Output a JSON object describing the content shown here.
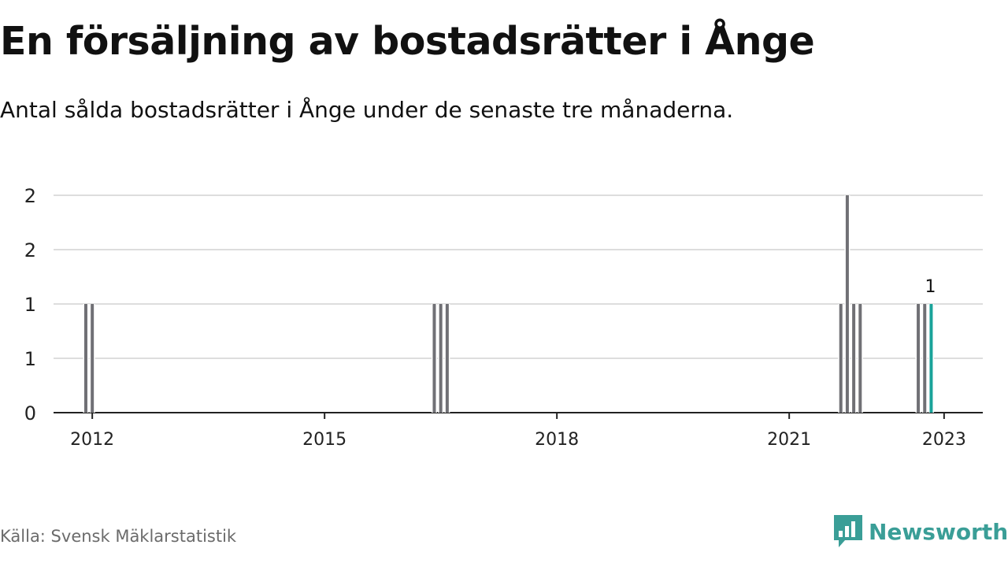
{
  "title": "En försäljning av bostadsrätter i Ånge",
  "subtitle": "Antal sålda bostadsrätter i Ånge under de senaste tre månaderna.",
  "source": "Källa: Svensk Mäklarstatistik",
  "brand": "Newsworthy",
  "colors": {
    "bar": "#707075",
    "highlight": "#1aa39a",
    "grid": "#dddddd",
    "axis": "#222222",
    "brand": "#3a9e97"
  },
  "chart_data": {
    "type": "bar",
    "title": "En försäljning av bostadsrätter i Ånge",
    "xlabel": "",
    "ylabel": "",
    "ylim": [
      0,
      2
    ],
    "xlim": [
      "2011-07",
      "2023-07"
    ],
    "y_ticks": [
      0,
      0.5,
      1,
      1.5,
      2
    ],
    "y_tick_labels": [
      "0",
      "1",
      "1",
      "2",
      "2"
    ],
    "x_ticks": [
      "2012",
      "2015",
      "2018",
      "2021",
      "2023"
    ],
    "grid": true,
    "highlight_label": "1",
    "series": [
      {
        "x": [
          "2011-12",
          "2012-01",
          "2016-06",
          "2016-07",
          "2016-08",
          "2021-09",
          "2021-10",
          "2021-11",
          "2021-12",
          "2022-09",
          "2022-10",
          "2022-11"
        ],
        "values": [
          1,
          1,
          1,
          1,
          1,
          1,
          2,
          1,
          1,
          1,
          1,
          1
        ],
        "highlight": [
          false,
          false,
          false,
          false,
          false,
          false,
          false,
          false,
          false,
          false,
          false,
          true
        ]
      }
    ]
  }
}
